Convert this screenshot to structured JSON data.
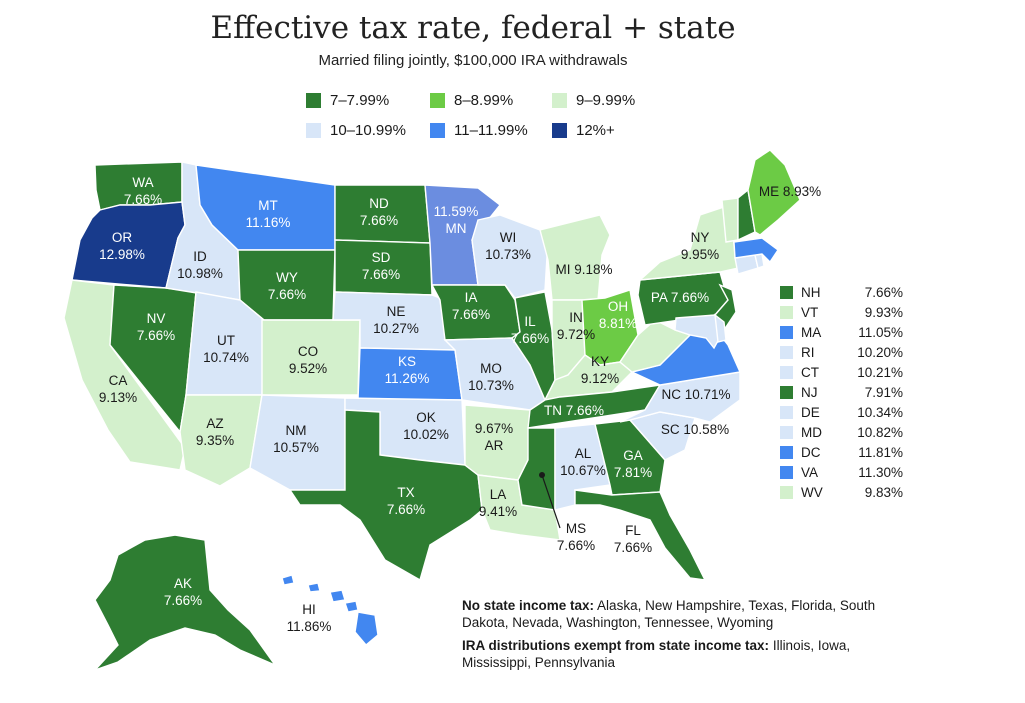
{
  "title": "Effective tax rate, federal + state",
  "subtitle": "Married filing jointly, $100,000 IRA withdrawals",
  "colors": {
    "c1": "#2e7d32",
    "c2": "#6ccb45",
    "c3": "#d3f0cc",
    "c4": "#d8e6f8",
    "c5": "#4287f0",
    "c6": "#183b8c",
    "mn": "#6b8de0"
  },
  "legend": [
    {
      "label": "7–7.99%",
      "color": "#2e7d32"
    },
    {
      "label": "8–8.99%",
      "color": "#6ccb45"
    },
    {
      "label": "9–9.99%",
      "color": "#d3f0cc"
    },
    {
      "label": "10–10.99%",
      "color": "#d8e6f8"
    },
    {
      "label": "11–11.99%",
      "color": "#4287f0"
    },
    {
      "label": "12%+",
      "color": "#183b8c"
    }
  ],
  "states": {
    "WA": {
      "abbr": "WA",
      "value": "7.66%"
    },
    "OR": {
      "abbr": "OR",
      "value": "12.98%"
    },
    "CA": {
      "abbr": "CA",
      "value": "9.13%"
    },
    "NV": {
      "abbr": "NV",
      "value": "7.66%"
    },
    "ID": {
      "abbr": "ID",
      "value": "10.98%"
    },
    "MT": {
      "abbr": "MT",
      "value": "11.16%"
    },
    "WY": {
      "abbr": "WY",
      "value": "7.66%"
    },
    "UT": {
      "abbr": "UT",
      "value": "10.74%"
    },
    "AZ": {
      "abbr": "AZ",
      "value": "9.35%"
    },
    "CO": {
      "abbr": "CO",
      "value": "9.52%"
    },
    "NM": {
      "abbr": "NM",
      "value": "10.57%"
    },
    "ND": {
      "abbr": "ND",
      "value": "7.66%"
    },
    "SD": {
      "abbr": "SD",
      "value": "7.66%"
    },
    "NE": {
      "abbr": "NE",
      "value": "10.27%"
    },
    "KS": {
      "abbr": "KS",
      "value": "11.26%"
    },
    "OK": {
      "abbr": "OK",
      "value": "10.02%"
    },
    "TX": {
      "abbr": "TX",
      "value": "7.66%"
    },
    "MN": {
      "abbr": "MN",
      "value": "11.59%"
    },
    "IA": {
      "abbr": "IA",
      "value": "7.66%"
    },
    "MO": {
      "abbr": "MO",
      "value": "10.73%"
    },
    "AR": {
      "abbr": "AR",
      "value": "9.67%"
    },
    "LA": {
      "abbr": "LA",
      "value": "9.41%"
    },
    "WI": {
      "abbr": "WI",
      "value": "10.73%"
    },
    "IL": {
      "abbr": "IL",
      "value": "7.66%"
    },
    "MI": {
      "abbr": "MI",
      "value": "9.18%"
    },
    "IN": {
      "abbr": "IN",
      "value": "9.72%"
    },
    "OH": {
      "abbr": "OH",
      "value": "8.81%"
    },
    "KY": {
      "abbr": "KY",
      "value": "9.12%"
    },
    "TN": {
      "abbr": "TN",
      "value": "7.66%"
    },
    "MS": {
      "abbr": "MS",
      "value": "7.66%"
    },
    "AL": {
      "abbr": "AL",
      "value": "10.67%"
    },
    "GA": {
      "abbr": "GA",
      "value": "7.81%"
    },
    "FL": {
      "abbr": "FL",
      "value": "7.66%"
    },
    "SC": {
      "abbr": "SC",
      "value": "10.58%"
    },
    "NC": {
      "abbr": "NC",
      "value": "10.71%"
    },
    "PA": {
      "abbr": "PA",
      "value": "7.66%"
    },
    "NY": {
      "abbr": "NY",
      "value": "9.95%"
    },
    "ME": {
      "abbr": "ME",
      "value": "8.93%"
    },
    "AK": {
      "abbr": "AK",
      "value": "7.66%"
    },
    "HI": {
      "abbr": "HI",
      "value": "11.86%"
    }
  },
  "northeast_list": [
    {
      "abbr": "NH",
      "value": "7.66%",
      "color": "#2e7d32"
    },
    {
      "abbr": "VT",
      "value": "9.93%",
      "color": "#d3f0cc"
    },
    {
      "abbr": "MA",
      "value": "11.05%",
      "color": "#4287f0"
    },
    {
      "abbr": "RI",
      "value": "10.20%",
      "color": "#d8e6f8"
    },
    {
      "abbr": "CT",
      "value": "10.21%",
      "color": "#d8e6f8"
    },
    {
      "abbr": "NJ",
      "value": "7.91%",
      "color": "#2e7d32"
    },
    {
      "abbr": "DE",
      "value": "10.34%",
      "color": "#d8e6f8"
    },
    {
      "abbr": "MD",
      "value": "10.82%",
      "color": "#d8e6f8"
    },
    {
      "abbr": "DC",
      "value": "11.81%",
      "color": "#4287f0"
    },
    {
      "abbr": "VA",
      "value": "11.30%",
      "color": "#4287f0"
    },
    {
      "abbr": "WV",
      "value": "9.83%",
      "color": "#d3f0cc"
    }
  ],
  "notes": {
    "no_tax_heading": "No state income tax:",
    "no_tax_list": " Alaska, New Hampshire, Texas, Florida, South Dakota, Nevada, Washington, Tennessee, Wyoming",
    "exempt_heading": "IRA distributions exempt from state income tax:",
    "exempt_list": " Illinois, Iowa, Mississippi, Pennsylvania"
  }
}
